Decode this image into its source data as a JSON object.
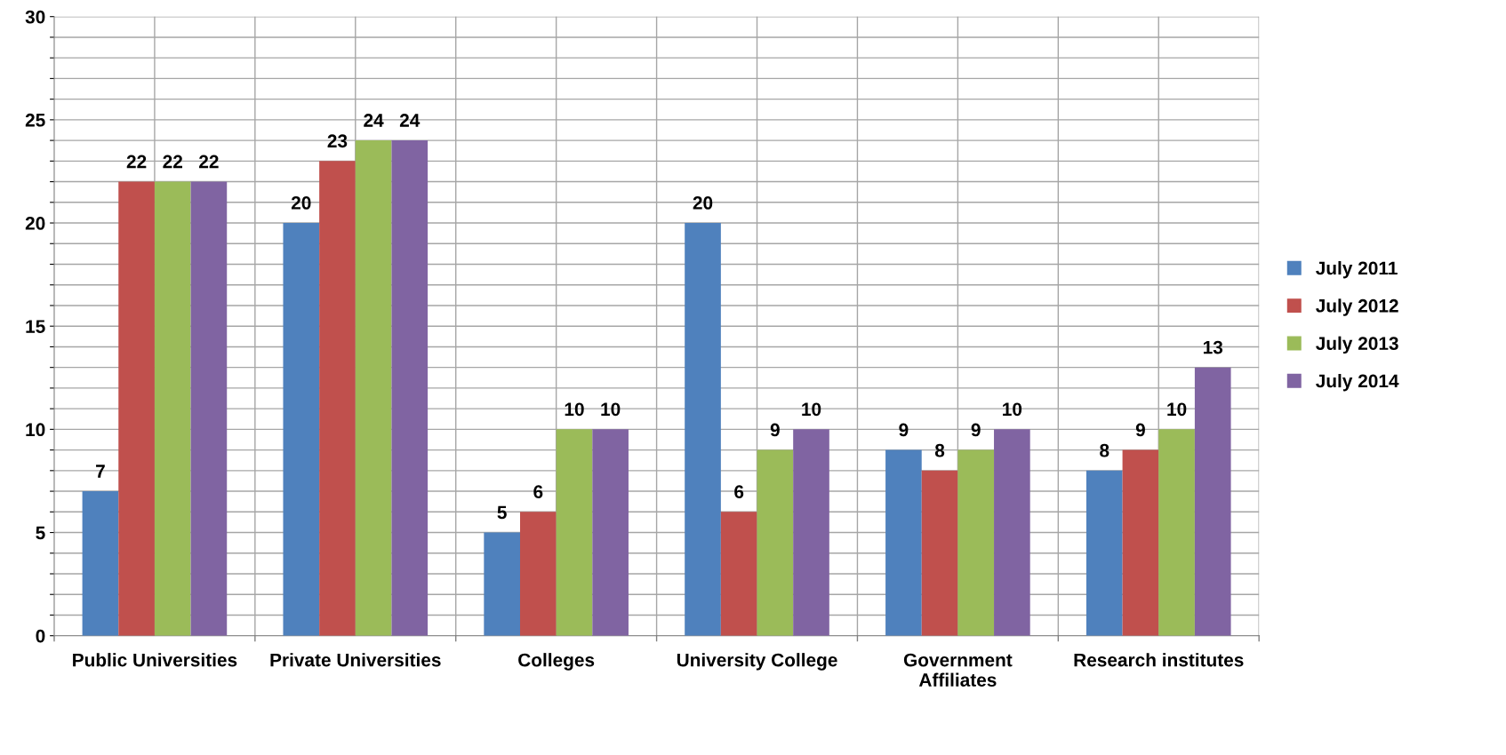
{
  "chart_data": {
    "type": "bar",
    "categories": [
      "Public Universities",
      "Private Universities",
      "Colleges",
      "University College",
      "Government\nAffiliates",
      "Research institutes"
    ],
    "series": [
      {
        "name": "July 2011",
        "color": "#4f81bd",
        "values": [
          7,
          20,
          5,
          20,
          9,
          8
        ]
      },
      {
        "name": "July 2012",
        "color": "#c0504d",
        "values": [
          22,
          23,
          6,
          6,
          8,
          9
        ]
      },
      {
        "name": "July 2013",
        "color": "#9bbb59",
        "values": [
          22,
          24,
          10,
          9,
          9,
          10
        ]
      },
      {
        "name": "July 2014",
        "color": "#8064a2",
        "values": [
          22,
          24,
          10,
          10,
          10,
          13
        ]
      }
    ],
    "ylim": [
      0,
      30
    ],
    "yticks": [
      0,
      {
        "value": 1,
        "label": null
      },
      {
        "value": 2,
        "label": null
      },
      {
        "value": 3,
        "label": null
      },
      {
        "value": 4,
        "label": null
      },
      5,
      {
        "value": 6,
        "label": null
      },
      {
        "value": 7,
        "label": null
      },
      {
        "value": 8,
        "label": null
      },
      {
        "value": 9,
        "label": null
      },
      10,
      {
        "value": 11,
        "label": null
      },
      {
        "value": 12,
        "label": null
      },
      {
        "value": 13,
        "label": null
      },
      {
        "value": 14,
        "label": null
      },
      15,
      {
        "value": 16,
        "label": null
      },
      {
        "value": 17,
        "label": null
      },
      {
        "value": 18,
        "label": null
      },
      {
        "value": 19,
        "label": null
      },
      20,
      {
        "value": 21,
        "label": null
      },
      {
        "value": 22,
        "label": null
      },
      {
        "value": 23,
        "label": null
      },
      {
        "value": 24,
        "label": null
      },
      25,
      {
        "value": 26,
        "label": null
      },
      {
        "value": 27,
        "label": null
      },
      {
        "value": 28,
        "label": null
      },
      {
        "value": 29,
        "label": null
      },
      30
    ],
    "grid": true,
    "legend": "right",
    "data_labels": true
  }
}
